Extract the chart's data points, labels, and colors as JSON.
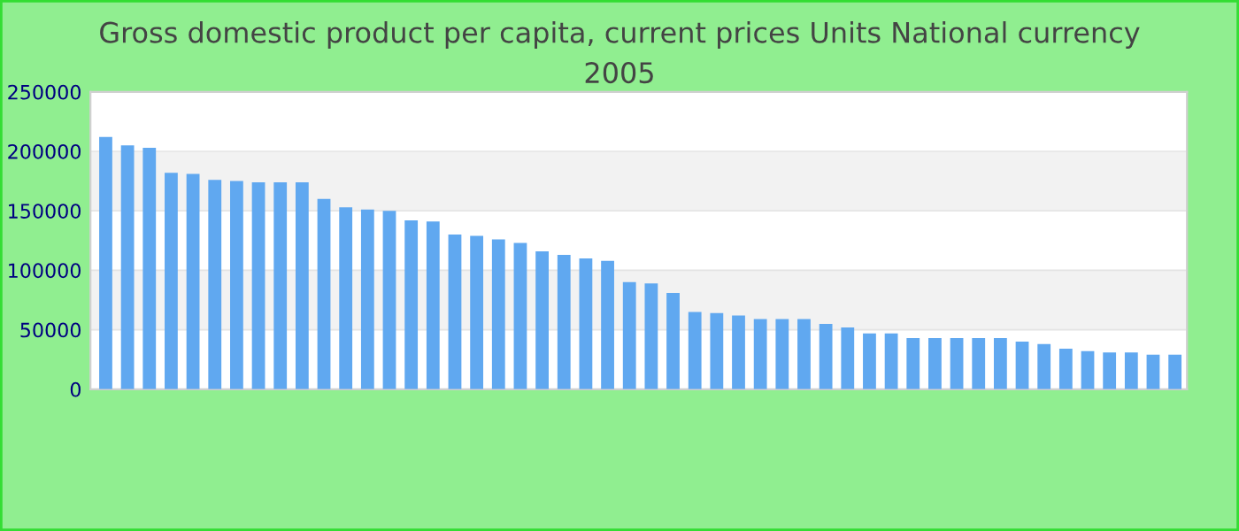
{
  "chart_data": {
    "type": "bar",
    "title": "Gross domestic product per capita, current prices Units National currency\n2005",
    "categories": [
      null,
      null,
      null,
      null,
      null,
      null,
      null,
      null,
      null,
      null,
      null,
      null,
      null,
      null,
      null,
      null,
      null,
      null,
      null,
      null,
      null,
      null,
      null,
      null,
      null,
      null,
      null,
      null,
      null,
      null,
      null,
      null,
      null,
      null,
      null,
      null,
      null,
      null,
      null,
      null,
      null,
      null,
      null,
      null,
      null,
      null,
      null,
      null,
      null,
      null
    ],
    "values": [
      212000,
      205000,
      203000,
      182000,
      181000,
      176000,
      175000,
      174000,
      174000,
      174000,
      160000,
      153000,
      151000,
      150000,
      142000,
      141000,
      130000,
      129000,
      126000,
      123000,
      116000,
      113000,
      110000,
      108000,
      90000,
      89000,
      81000,
      65000,
      64000,
      62000,
      59000,
      59000,
      59000,
      55000,
      52000,
      47000,
      47000,
      43000,
      43000,
      43000,
      43000,
      43000,
      40000,
      38000,
      34000,
      32000,
      31000,
      31000,
      29000,
      29000
    ],
    "color": "#60a8f0",
    "ylim": [
      0,
      250000
    ],
    "yticks": [
      0,
      50000,
      100000,
      150000,
      200000,
      250000
    ],
    "grid": "y",
    "legend": false
  }
}
